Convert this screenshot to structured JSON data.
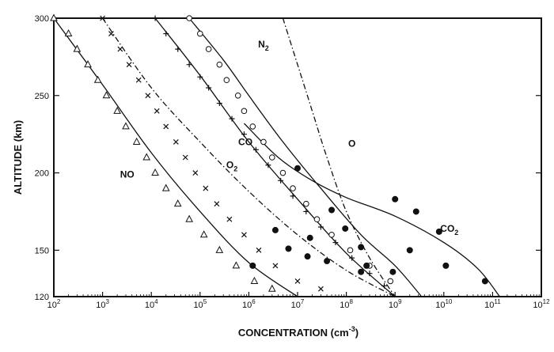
{
  "chart_data": {
    "type": "scatter",
    "title": "",
    "xlabel": "CONCENTRATION (cm",
    "xlabel_sup": "-3",
    "xlabel_close": ")",
    "ylabel": "ALTITUDE (km)",
    "x_scale": "log",
    "xlim": [
      100,
      1000000000000
    ],
    "ylim": [
      120,
      300
    ],
    "x_ticks": [
      {
        "value": 100,
        "base": "10",
        "exp": "2"
      },
      {
        "value": 1000,
        "base": "10",
        "exp": "3"
      },
      {
        "value": 10000,
        "base": "10",
        "exp": "4"
      },
      {
        "value": 100000,
        "base": "10",
        "exp": "5"
      },
      {
        "value": 1000000,
        "base": "10",
        "exp": "6"
      },
      {
        "value": 10000000,
        "base": "10",
        "exp": "7"
      },
      {
        "value": 100000000,
        "base": "10",
        "exp": "8"
      },
      {
        "value": 1000000000,
        "base": "10",
        "exp": "9"
      },
      {
        "value": 10000000000,
        "base": "10",
        "exp": "10"
      },
      {
        "value": 100000000000,
        "base": "10",
        "exp": "11"
      },
      {
        "value": 1000000000000,
        "base": "10",
        "exp": "12"
      }
    ],
    "y_ticks": [
      {
        "value": 120,
        "label": "120"
      },
      {
        "value": 150,
        "label": "150"
      },
      {
        "value": 200,
        "label": "200"
      },
      {
        "value": 250,
        "label": "250"
      },
      {
        "value": 300,
        "label": "300"
      }
    ],
    "grid": false,
    "legend": "none",
    "series": [
      {
        "name": "NO",
        "label_display": "NO",
        "marker": "triangle",
        "line": "solid",
        "label_at": {
          "x": 3200,
          "y": 197
        },
        "curve": [
          [
            100,
            300
          ],
          [
            1000,
            257
          ],
          [
            10000,
            213
          ],
          [
            100000,
            175
          ],
          [
            1000000,
            142
          ],
          [
            10000000,
            120
          ]
        ],
        "points": [
          {
            "x": 100,
            "y": 300
          },
          {
            "x": 200,
            "y": 290
          },
          {
            "x": 300,
            "y": 280
          },
          {
            "x": 500,
            "y": 270
          },
          {
            "x": 800,
            "y": 260
          },
          {
            "x": 1200,
            "y": 250
          },
          {
            "x": 2000,
            "y": 240
          },
          {
            "x": 3000,
            "y": 230
          },
          {
            "x": 5000,
            "y": 220
          },
          {
            "x": 8000,
            "y": 210
          },
          {
            "x": 12000,
            "y": 200
          },
          {
            "x": 20000,
            "y": 190
          },
          {
            "x": 35000,
            "y": 180
          },
          {
            "x": 60000,
            "y": 170
          },
          {
            "x": 120000,
            "y": 160
          },
          {
            "x": 250000,
            "y": 150
          },
          {
            "x": 550000,
            "y": 140
          },
          {
            "x": 1300000,
            "y": 130
          },
          {
            "x": 3000000,
            "y": 125
          }
        ]
      },
      {
        "name": "O2",
        "label_display": "O",
        "label_sub": "2",
        "marker": "x",
        "line": "dashdot",
        "label_at": {
          "x": 450000,
          "y": 203
        },
        "curve": [
          [
            1000,
            300
          ],
          [
            10000,
            255
          ],
          [
            100000,
            220
          ],
          [
            1000000,
            188
          ],
          [
            10000000,
            160
          ],
          [
            100000000,
            137
          ],
          [
            1000000000,
            120
          ]
        ],
        "points": [
          {
            "x": 1000,
            "y": 300
          },
          {
            "x": 1500,
            "y": 290
          },
          {
            "x": 2300,
            "y": 280
          },
          {
            "x": 3500,
            "y": 270
          },
          {
            "x": 5500,
            "y": 260
          },
          {
            "x": 8500,
            "y": 250
          },
          {
            "x": 13000,
            "y": 240
          },
          {
            "x": 20000,
            "y": 230
          },
          {
            "x": 32000,
            "y": 220
          },
          {
            "x": 50000,
            "y": 210
          },
          {
            "x": 80000,
            "y": 200
          },
          {
            "x": 130000,
            "y": 190
          },
          {
            "x": 220000,
            "y": 180
          },
          {
            "x": 400000,
            "y": 170
          },
          {
            "x": 800000,
            "y": 160
          },
          {
            "x": 1600000,
            "y": 150
          },
          {
            "x": 3500000,
            "y": 140
          },
          {
            "x": 10000000,
            "y": 130
          },
          {
            "x": 30000000,
            "y": 125
          }
        ]
      },
      {
        "name": "CO",
        "label_display": "CO",
        "marker": "plus",
        "line": "solid",
        "label_at": {
          "x": 850000,
          "y": 218
        },
        "curve": [
          [
            12000,
            300
          ],
          [
            100000,
            263
          ],
          [
            1000000,
            220
          ],
          [
            10000000,
            183
          ],
          [
            100000000,
            148
          ],
          [
            1000000000,
            120
          ]
        ],
        "points": [
          {
            "x": 12000,
            "y": 300
          },
          {
            "x": 20000,
            "y": 290
          },
          {
            "x": 35000,
            "y": 280
          },
          {
            "x": 60000,
            "y": 270
          },
          {
            "x": 100000,
            "y": 262
          },
          {
            "x": 150000,
            "y": 255
          },
          {
            "x": 250000,
            "y": 245
          },
          {
            "x": 450000,
            "y": 235
          },
          {
            "x": 800000,
            "y": 225
          },
          {
            "x": 1400000,
            "y": 215
          },
          {
            "x": 2500000,
            "y": 205
          },
          {
            "x": 4500000,
            "y": 195
          },
          {
            "x": 8000000,
            "y": 185
          },
          {
            "x": 15000000,
            "y": 175
          },
          {
            "x": 30000000,
            "y": 165
          },
          {
            "x": 60000000,
            "y": 155
          },
          {
            "x": 130000000,
            "y": 145
          },
          {
            "x": 300000000,
            "y": 135
          },
          {
            "x": 600000000,
            "y": 127
          }
        ]
      },
      {
        "name": "N2",
        "label_display": "N",
        "label_sub": "2",
        "marker": "circle-open",
        "line": "solid",
        "label_at": {
          "x": 2000000,
          "y": 281
        },
        "curve": [
          [
            60000,
            300
          ],
          [
            300000,
            273
          ],
          [
            1000000,
            250
          ],
          [
            5000000,
            220
          ],
          [
            30000000,
            190
          ],
          [
            200000000,
            160
          ],
          [
            1000000000,
            140
          ],
          [
            3500000000,
            120
          ]
        ],
        "points": [
          {
            "x": 60000,
            "y": 300
          },
          {
            "x": 100000,
            "y": 290
          },
          {
            "x": 150000,
            "y": 280
          },
          {
            "x": 250000,
            "y": 270
          },
          {
            "x": 350000,
            "y": 260
          },
          {
            "x": 600000,
            "y": 250
          },
          {
            "x": 800000,
            "y": 240
          },
          {
            "x": 1200000,
            "y": 230
          },
          {
            "x": 2000000,
            "y": 220
          },
          {
            "x": 3000000,
            "y": 210
          },
          {
            "x": 5000000,
            "y": 200
          },
          {
            "x": 8000000,
            "y": 190
          },
          {
            "x": 15000000,
            "y": 180
          },
          {
            "x": 25000000,
            "y": 170
          },
          {
            "x": 50000000,
            "y": 160
          },
          {
            "x": 120000000,
            "y": 150
          },
          {
            "x": 300000000,
            "y": 140
          },
          {
            "x": 800000000,
            "y": 130
          }
        ]
      },
      {
        "name": "O",
        "label_display": "O",
        "marker": "none",
        "line": "dashdot",
        "label_at": {
          "x": 130000000,
          "y": 217
        },
        "curve": [
          [
            5000000,
            300
          ],
          [
            10000000,
            270
          ],
          [
            20000000,
            240
          ],
          [
            40000000,
            210
          ],
          [
            100000000,
            175
          ],
          [
            300000000,
            145
          ],
          [
            1000000000,
            120
          ]
        ],
        "points": []
      },
      {
        "name": "CO2",
        "label_display": "CO",
        "label_sub": "2",
        "marker": "circle-filled",
        "line": "solid",
        "label_at": {
          "x": 13000000000,
          "y": 162
        },
        "curve": [
          [
            800000,
            232
          ],
          [
            4000000,
            210
          ],
          [
            20000000,
            195
          ],
          [
            100000000,
            184
          ],
          [
            1000000000,
            172
          ],
          [
            10000000000,
            155
          ],
          [
            50000000000,
            138
          ],
          [
            140000000000,
            120
          ]
        ],
        "points": [
          {
            "x": 10000000,
            "y": 203
          },
          {
            "x": 1000000000,
            "y": 183
          },
          {
            "x": 2700000000,
            "y": 175
          },
          {
            "x": 8000000000,
            "y": 162
          },
          {
            "x": 2000000000,
            "y": 150
          },
          {
            "x": 11000000000,
            "y": 140
          },
          {
            "x": 70000000000,
            "y": 130
          },
          {
            "x": 3500000,
            "y": 163
          },
          {
            "x": 1200000,
            "y": 140
          },
          {
            "x": 6500000,
            "y": 151
          },
          {
            "x": 18000000,
            "y": 158
          },
          {
            "x": 16000000,
            "y": 146
          },
          {
            "x": 40000000,
            "y": 143
          },
          {
            "x": 200000000,
            "y": 152
          },
          {
            "x": 260000000,
            "y": 140
          },
          {
            "x": 900000000,
            "y": 136
          },
          {
            "x": 50000000,
            "y": 176
          },
          {
            "x": 95000000,
            "y": 164
          },
          {
            "x": 200000000,
            "y": 136
          }
        ]
      }
    ]
  }
}
